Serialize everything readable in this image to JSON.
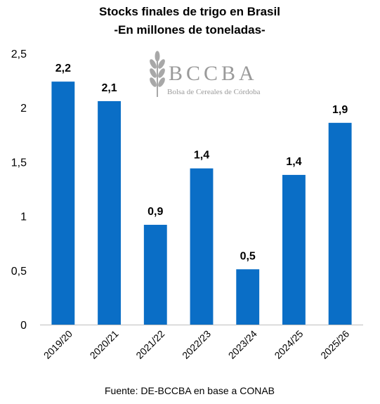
{
  "chart_data": {
    "type": "bar",
    "title": "Stocks finales de trigo en Brasil",
    "subtitle": "-En millones de toneladas-",
    "categories": [
      "2019/20",
      "2020/21",
      "2021/22",
      "2022/23",
      "2023/24",
      "2024/25",
      "2025/26"
    ],
    "values": [
      2.24,
      2.06,
      0.92,
      1.44,
      0.51,
      1.38,
      1.86
    ],
    "data_labels": [
      "2,2",
      "2,1",
      "0,9",
      "1,4",
      "0,5",
      "1,4",
      "1,9"
    ],
    "ylim": [
      0,
      2.5
    ],
    "yticks": [
      0,
      0.5,
      1,
      1.5,
      2,
      2.5
    ],
    "ytick_labels": [
      "0",
      "0,5",
      "1",
      "1,5",
      "2",
      "2,5"
    ],
    "bar_color": "#0A6EC6",
    "grid": false,
    "legend": "none"
  },
  "logo": {
    "name": "BCCBA",
    "tagline": "Bolsa de Cereales de Córdoba",
    "icon": "wheat-icon"
  },
  "source": "Fuente: DE-BCCBA en base a CONAB"
}
